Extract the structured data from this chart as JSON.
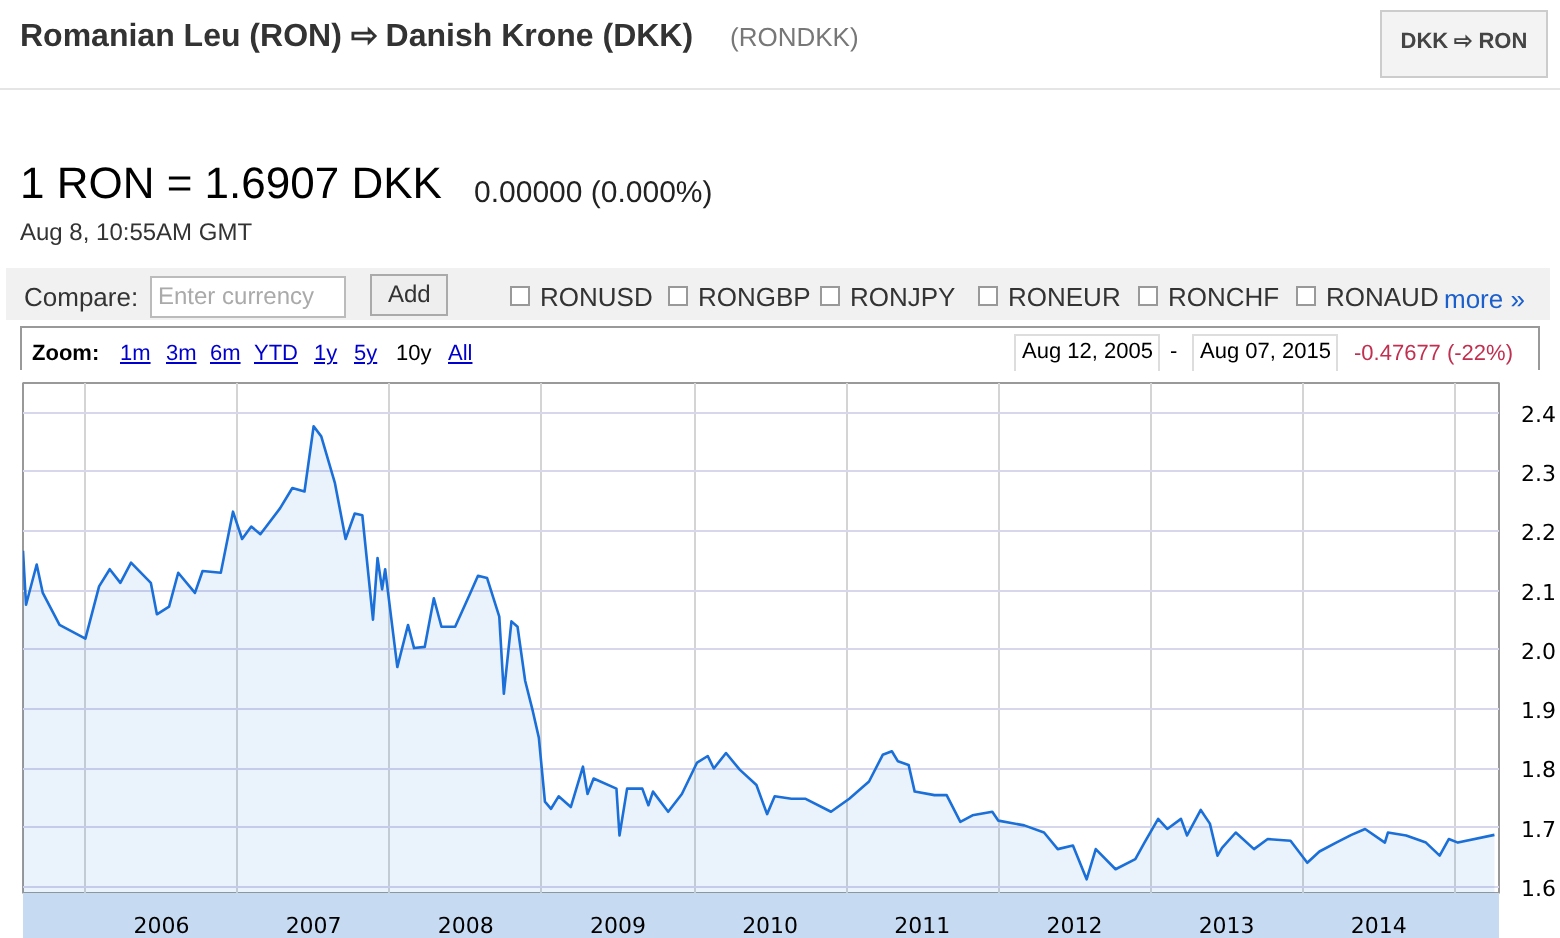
{
  "chart_data": {
    "type": "area",
    "title": "Romanian Leu (RON) ⇨ Danish Krone (DKK)",
    "subtitle": "(RONDKK)",
    "annotations": [
      "DKK ⇨ RON",
      "1 RON = 1.6907 DKK",
      "0.00000 (0.000%)",
      "Aug 8, 10:55AM GMT",
      "Compare:",
      "Enter currency",
      "Add",
      "RONUSD",
      "RONGBP",
      "RONJPY",
      "RONEUR",
      "RONCHF",
      "RONAUD",
      "more »",
      "Zoom:",
      "1m",
      "3m",
      "6m",
      "YTD",
      "1y",
      "5y",
      "10y",
      "All",
      "Aug 12, 2005",
      "-",
      "Aug 07, 2015",
      "-0.47677 (-22%)"
    ],
    "x": [
      2005.59,
      2005.61,
      2005.68,
      2005.72,
      2005.83,
      2006.0,
      2006.09,
      2006.16,
      2006.23,
      2006.3,
      2006.43,
      2006.47,
      2006.55,
      2006.61,
      2006.72,
      2006.77,
      2006.89,
      2006.97,
      2007.03,
      2007.09,
      2007.15,
      2007.28,
      2007.36,
      2007.44,
      2007.5,
      2007.55,
      2007.64,
      2007.71,
      2007.77,
      2007.82,
      2007.89,
      2007.92,
      2007.95,
      2007.97,
      2008.05,
      2008.12,
      2008.16,
      2008.23,
      2008.29,
      2008.34,
      2008.43,
      2008.53,
      2008.58,
      2008.64,
      2008.72,
      2008.75,
      2008.8,
      2008.84,
      2008.89,
      2008.94,
      2008.98,
      2009.02,
      2009.06,
      2009.11,
      2009.19,
      2009.27,
      2009.3,
      2009.34,
      2009.49,
      2009.51,
      2009.56,
      2009.66,
      2009.7,
      2009.73,
      2009.83,
      2009.92,
      2010.02,
      2010.09,
      2010.13,
      2010.21,
      2010.3,
      2010.41,
      2010.48,
      2010.53,
      2010.64,
      2010.73,
      2010.9,
      2011.02,
      2011.15,
      2011.24,
      2011.3,
      2011.34,
      2011.41,
      2011.45,
      2011.58,
      2011.66,
      2011.75,
      2011.83,
      2011.96,
      2012.0,
      2012.17,
      2012.3,
      2012.39,
      2012.49,
      2012.58,
      2012.64,
      2012.77,
      2012.9,
      2012.96,
      2013.05,
      2013.11,
      2013.2,
      2013.24,
      2013.33,
      2013.39,
      2013.44,
      2013.47,
      2013.56,
      2013.68,
      2013.77,
      2013.92,
      2014.03,
      2014.11,
      2014.22,
      2014.32,
      2014.41,
      2014.54,
      2014.56,
      2014.68,
      2014.81,
      2014.9,
      2014.96,
      2015.02,
      2015.26
    ],
    "series": [
      {
        "color": "#1a6fd8",
        "values": [
          2.167,
          2.076,
          2.144,
          2.096,
          2.042,
          2.019,
          2.107,
          2.136,
          2.113,
          2.147,
          2.113,
          2.06,
          2.073,
          2.13,
          2.096,
          2.133,
          2.13,
          2.233,
          2.187,
          2.208,
          2.195,
          2.239,
          2.273,
          2.267,
          2.377,
          2.36,
          2.281,
          2.187,
          2.23,
          2.227,
          2.051,
          2.155,
          2.102,
          2.136,
          1.971,
          2.042,
          2.003,
          2.005,
          2.087,
          2.039,
          2.039,
          2.096,
          2.125,
          2.121,
          2.056,
          1.926,
          2.048,
          2.039,
          1.948,
          1.897,
          1.852,
          1.744,
          1.732,
          1.753,
          1.735,
          1.803,
          1.757,
          1.783,
          1.766,
          1.687,
          1.766,
          1.766,
          1.738,
          1.761,
          1.727,
          1.757,
          1.81,
          1.821,
          1.8,
          1.826,
          1.798,
          1.772,
          1.723,
          1.753,
          1.749,
          1.749,
          1.727,
          1.749,
          1.778,
          1.823,
          1.829,
          1.812,
          1.806,
          1.761,
          1.755,
          1.755,
          1.71,
          1.721,
          1.727,
          1.712,
          1.704,
          1.692,
          1.664,
          1.67,
          1.613,
          1.664,
          1.63,
          1.647,
          1.675,
          1.715,
          1.698,
          1.715,
          1.687,
          1.73,
          1.707,
          1.653,
          1.666,
          1.692,
          1.664,
          1.681,
          1.678,
          1.641,
          1.66,
          1.675,
          1.688,
          1.698,
          1.675,
          1.692,
          1.687,
          1.675,
          1.653,
          1.681,
          1.675,
          1.688
        ]
      }
    ],
    "xlim": [
      2005.59,
      2015.29
    ],
    "ylim": [
      1.59,
      2.45
    ],
    "xticks": [
      {
        "value": 2006,
        "label": null
      },
      {
        "value": 2007,
        "label": null
      },
      {
        "value": 2008,
        "label": null
      },
      {
        "value": 2009,
        "label": null
      },
      {
        "value": 2010,
        "label": null
      },
      {
        "value": 2011,
        "label": null
      },
      {
        "value": 2012,
        "label": null
      },
      {
        "value": 2013,
        "label": null
      },
      {
        "value": 2014,
        "label": null
      },
      {
        "value": 2015,
        "label": null
      },
      {
        "value": 2006.5,
        "label": "2006"
      },
      {
        "value": 2007.5,
        "label": "2007"
      },
      {
        "value": 2008.5,
        "label": "2008"
      },
      {
        "value": 2009.5,
        "label": "2009"
      },
      {
        "value": 2010.5,
        "label": "2010"
      },
      {
        "value": 2011.5,
        "label": "2011"
      },
      {
        "value": 2012.5,
        "label": "2012"
      },
      {
        "value": 2013.5,
        "label": "2013"
      },
      {
        "value": 2014.5,
        "label": "2014"
      }
    ],
    "yticks": [
      1.6,
      1.7,
      1.8,
      1.9,
      {
        "value": 2.0,
        "label": "2.0"
      },
      2.1,
      2.2,
      2.3,
      2.4
    ],
    "grid": true
  }
}
